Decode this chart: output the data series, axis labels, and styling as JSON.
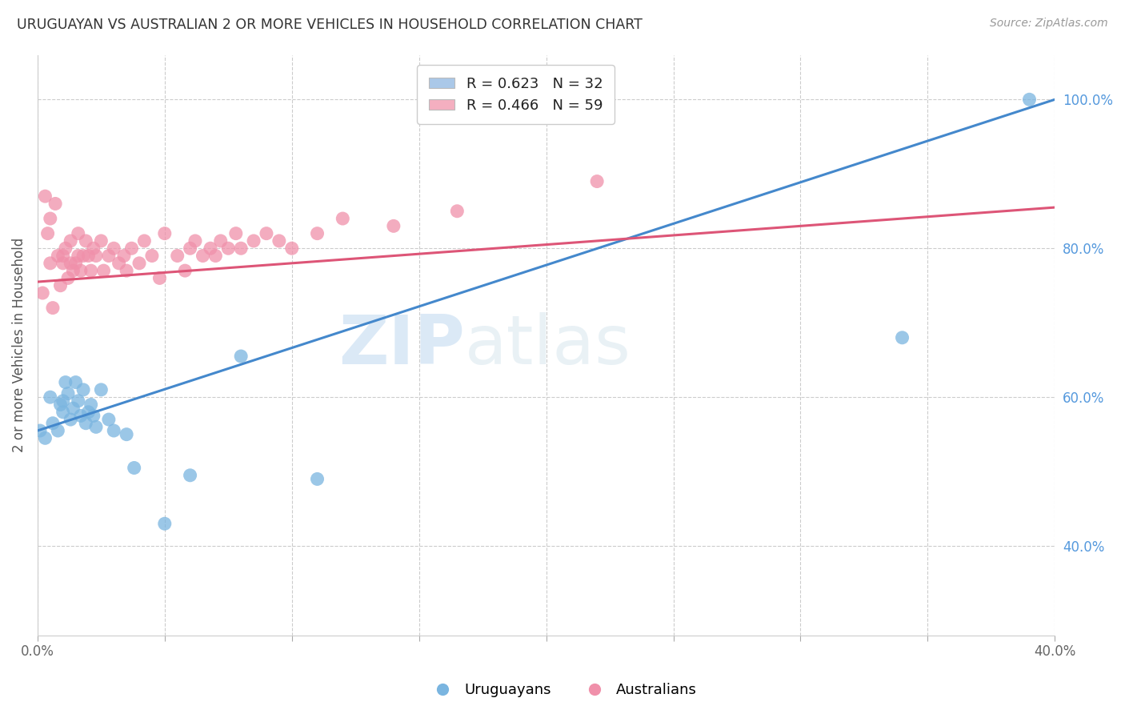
{
  "title": "URUGUAYAN VS AUSTRALIAN 2 OR MORE VEHICLES IN HOUSEHOLD CORRELATION CHART",
  "source": "Source: ZipAtlas.com",
  "ylabel": "2 or more Vehicles in Household",
  "xmin": 0.0,
  "xmax": 0.4,
  "ymin": 0.28,
  "ymax": 1.06,
  "xtick_positions": [
    0.0,
    0.05,
    0.1,
    0.15,
    0.2,
    0.25,
    0.3,
    0.35,
    0.4
  ],
  "xtick_labels": [
    "0.0%",
    "",
    "",
    "",
    "",
    "",
    "",
    "",
    "40.0%"
  ],
  "ytick_positions": [
    0.4,
    0.6,
    0.8,
    1.0
  ],
  "ytick_labels_right": [
    "40.0%",
    "60.0%",
    "80.0%",
    "100.0%"
  ],
  "ytick_grid_positions": [
    0.4,
    0.6,
    0.8,
    1.0
  ],
  "legend_blue_label": "R = 0.623   N = 32",
  "legend_pink_label": "R = 0.466   N = 59",
  "legend_blue_color": "#aac8e8",
  "legend_pink_color": "#f4afc0",
  "uruguayan_color": "#7ab5e0",
  "australian_color": "#f090aa",
  "trend_blue_color": "#4488cc",
  "trend_pink_color": "#dd5577",
  "watermark_zip": "ZIP",
  "watermark_atlas": "atlas",
  "bottom_label_uruguayans": "Uruguayans",
  "bottom_label_australians": "Australians",
  "uruguayan_x": [
    0.001,
    0.003,
    0.005,
    0.006,
    0.008,
    0.009,
    0.01,
    0.01,
    0.011,
    0.012,
    0.013,
    0.014,
    0.015,
    0.016,
    0.017,
    0.018,
    0.019,
    0.02,
    0.021,
    0.022,
    0.023,
    0.025,
    0.028,
    0.03,
    0.035,
    0.038,
    0.05,
    0.06,
    0.08,
    0.11,
    0.34,
    0.39
  ],
  "uruguayan_y": [
    0.555,
    0.545,
    0.6,
    0.565,
    0.555,
    0.59,
    0.58,
    0.595,
    0.62,
    0.605,
    0.57,
    0.585,
    0.62,
    0.595,
    0.575,
    0.61,
    0.565,
    0.58,
    0.59,
    0.575,
    0.56,
    0.61,
    0.57,
    0.555,
    0.55,
    0.505,
    0.43,
    0.495,
    0.655,
    0.49,
    0.68,
    1.0
  ],
  "australian_x": [
    0.002,
    0.003,
    0.004,
    0.005,
    0.005,
    0.006,
    0.007,
    0.008,
    0.009,
    0.01,
    0.01,
    0.011,
    0.012,
    0.013,
    0.013,
    0.014,
    0.015,
    0.016,
    0.016,
    0.017,
    0.018,
    0.019,
    0.02,
    0.021,
    0.022,
    0.023,
    0.025,
    0.026,
    0.028,
    0.03,
    0.032,
    0.034,
    0.035,
    0.037,
    0.04,
    0.042,
    0.045,
    0.048,
    0.05,
    0.055,
    0.058,
    0.06,
    0.062,
    0.065,
    0.068,
    0.07,
    0.072,
    0.075,
    0.078,
    0.08,
    0.085,
    0.09,
    0.095,
    0.1,
    0.11,
    0.12,
    0.14,
    0.165,
    0.22
  ],
  "australian_y": [
    0.74,
    0.87,
    0.82,
    0.78,
    0.84,
    0.72,
    0.86,
    0.79,
    0.75,
    0.78,
    0.79,
    0.8,
    0.76,
    0.78,
    0.81,
    0.77,
    0.78,
    0.79,
    0.82,
    0.77,
    0.79,
    0.81,
    0.79,
    0.77,
    0.8,
    0.79,
    0.81,
    0.77,
    0.79,
    0.8,
    0.78,
    0.79,
    0.77,
    0.8,
    0.78,
    0.81,
    0.79,
    0.76,
    0.82,
    0.79,
    0.77,
    0.8,
    0.81,
    0.79,
    0.8,
    0.79,
    0.81,
    0.8,
    0.82,
    0.8,
    0.81,
    0.82,
    0.81,
    0.8,
    0.82,
    0.84,
    0.83,
    0.85,
    0.89
  ],
  "trend_uru_x0": 0.0,
  "trend_uru_y0": 0.555,
  "trend_uru_x1": 0.4,
  "trend_uru_y1": 1.0,
  "trend_aus_x0": 0.0,
  "trend_aus_y0": 0.755,
  "trend_aus_x1": 0.4,
  "trend_aus_y1": 0.855
}
